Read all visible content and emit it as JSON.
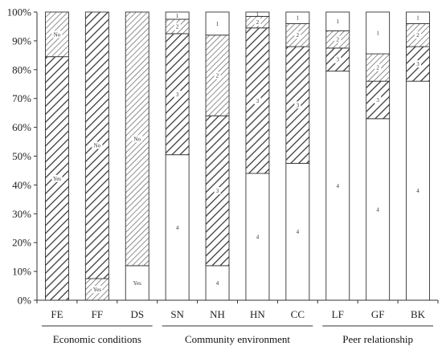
{
  "chart_data": {
    "type": "bar",
    "stacked": true,
    "percent": true,
    "y_ticks": [
      "0%",
      "10%",
      "20%",
      "30%",
      "40%",
      "50%",
      "60%",
      "70%",
      "80%",
      "90%",
      "100%"
    ],
    "ylim": [
      0,
      100
    ],
    "grid": false,
    "legend": "none",
    "groups": [
      {
        "label": "Economic conditions",
        "categories": [
          "FE",
          "FF",
          "DS"
        ]
      },
      {
        "label": "Community environment",
        "categories": [
          "SN",
          "NH",
          "HN",
          "CC"
        ]
      },
      {
        "label": "Peer relationship",
        "categories": [
          "LF",
          "GF",
          "BK"
        ]
      }
    ],
    "bars": [
      {
        "category": "FE",
        "segments": [
          {
            "label": "Yes",
            "value": 84.5,
            "pattern": "hatch"
          },
          {
            "label": "No",
            "value": 15.5,
            "pattern": "hatch-fine"
          }
        ]
      },
      {
        "category": "FF",
        "segments": [
          {
            "label": "Yes",
            "value": 7.5,
            "pattern": "hatch-fine"
          },
          {
            "label": "No",
            "value": 92.5,
            "pattern": "hatch"
          }
        ]
      },
      {
        "category": "DS",
        "segments": [
          {
            "label": "Yes",
            "value": 12,
            "pattern": "blank"
          },
          {
            "label": "No",
            "value": 88,
            "pattern": "hatch-fine"
          }
        ]
      },
      {
        "category": "SN",
        "segments": [
          {
            "label": "4",
            "value": 50.5,
            "pattern": "blank"
          },
          {
            "label": "3",
            "value": 42,
            "pattern": "hatch"
          },
          {
            "label": "2",
            "value": 5,
            "pattern": "hatch-fine"
          },
          {
            "label": "1",
            "value": 2.5,
            "pattern": "blank"
          }
        ]
      },
      {
        "category": "NH",
        "segments": [
          {
            "label": "4",
            "value": 12,
            "pattern": "blank"
          },
          {
            "label": "3",
            "value": 52,
            "pattern": "hatch"
          },
          {
            "label": "2",
            "value": 28,
            "pattern": "hatch-fine"
          },
          {
            "label": "1",
            "value": 8,
            "pattern": "blank"
          }
        ]
      },
      {
        "category": "HN",
        "segments": [
          {
            "label": "4",
            "value": 44,
            "pattern": "blank"
          },
          {
            "label": "3",
            "value": 50.5,
            "pattern": "hatch"
          },
          {
            "label": "2",
            "value": 4,
            "pattern": "hatch-fine"
          },
          {
            "label": "1",
            "value": 1.5,
            "pattern": "blank"
          }
        ]
      },
      {
        "category": "CC",
        "segments": [
          {
            "label": "4",
            "value": 47.5,
            "pattern": "blank"
          },
          {
            "label": "3",
            "value": 40.5,
            "pattern": "hatch"
          },
          {
            "label": "2",
            "value": 8,
            "pattern": "hatch-fine"
          },
          {
            "label": "1",
            "value": 4,
            "pattern": "blank"
          }
        ]
      },
      {
        "category": "LF",
        "segments": [
          {
            "label": "4",
            "value": 79.5,
            "pattern": "blank"
          },
          {
            "label": "3",
            "value": 8,
            "pattern": "hatch"
          },
          {
            "label": "2",
            "value": 6,
            "pattern": "hatch-fine"
          },
          {
            "label": "1",
            "value": 6.5,
            "pattern": "blank"
          }
        ]
      },
      {
        "category": "GF",
        "segments": [
          {
            "label": "4",
            "value": 63,
            "pattern": "blank"
          },
          {
            "label": "3",
            "value": 13,
            "pattern": "hatch"
          },
          {
            "label": "2",
            "value": 9.5,
            "pattern": "hatch-fine"
          },
          {
            "label": "1",
            "value": 14.5,
            "pattern": "blank"
          }
        ]
      },
      {
        "category": "BK",
        "segments": [
          {
            "label": "4",
            "value": 76,
            "pattern": "blank"
          },
          {
            "label": "3",
            "value": 12,
            "pattern": "hatch"
          },
          {
            "label": "2",
            "value": 8,
            "pattern": "hatch-fine"
          },
          {
            "label": "1",
            "value": 4,
            "pattern": "blank"
          }
        ]
      }
    ]
  }
}
